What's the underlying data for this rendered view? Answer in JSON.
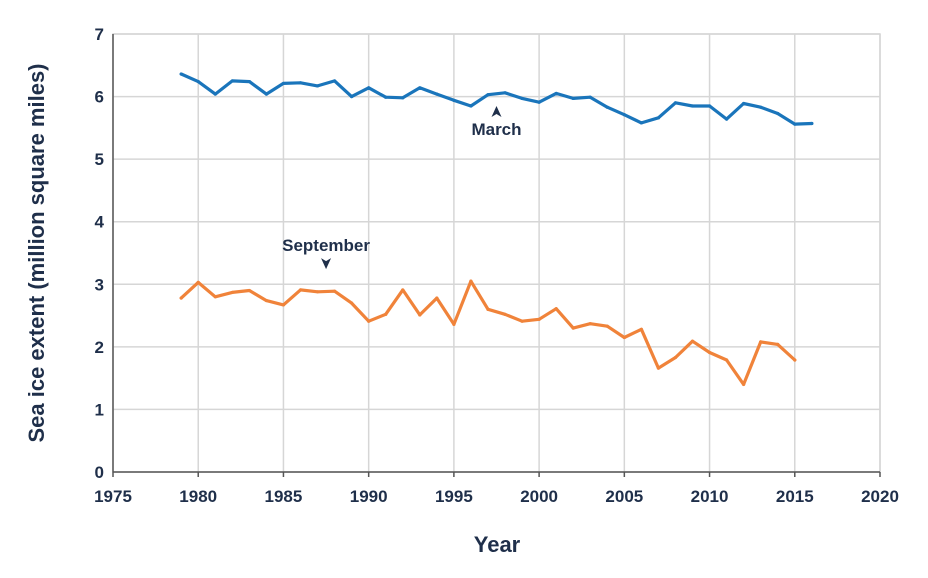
{
  "chart_data": {
    "type": "line",
    "title": "",
    "xlabel": "Year",
    "ylabel": "Sea ice extent (million square miles)",
    "xlim": [
      1975,
      2020
    ],
    "ylim": [
      0,
      7
    ],
    "x_ticks": [
      1975,
      1980,
      1985,
      1990,
      1995,
      2000,
      2005,
      2010,
      2015,
      2020
    ],
    "y_ticks": [
      0,
      1,
      2,
      3,
      4,
      5,
      6,
      7
    ],
    "grid": true,
    "series": [
      {
        "name": "March",
        "color": "#1a75bb",
        "x": [
          1979,
          1980,
          1981,
          1982,
          1983,
          1984,
          1985,
          1986,
          1987,
          1988,
          1989,
          1990,
          1991,
          1992,
          1993,
          1994,
          1995,
          1996,
          1997,
          1998,
          1999,
          2000,
          2001,
          2002,
          2003,
          2004,
          2005,
          2006,
          2007,
          2008,
          2009,
          2010,
          2011,
          2012,
          2013,
          2014,
          2015,
          2016
        ],
        "values": [
          6.36,
          6.24,
          6.04,
          6.25,
          6.24,
          6.04,
          6.21,
          6.22,
          6.17,
          6.25,
          6.0,
          6.14,
          5.99,
          5.98,
          6.14,
          6.04,
          5.94,
          5.85,
          6.03,
          6.06,
          5.97,
          5.91,
          6.05,
          5.97,
          5.99,
          5.83,
          5.71,
          5.58,
          5.66,
          5.9,
          5.85,
          5.85,
          5.64,
          5.89,
          5.83,
          5.73,
          5.56,
          5.57
        ]
      },
      {
        "name": "September",
        "color": "#f0833a",
        "x": [
          1979,
          1980,
          1981,
          1982,
          1983,
          1984,
          1985,
          1986,
          1987,
          1988,
          1989,
          1990,
          1991,
          1992,
          1993,
          1994,
          1995,
          1996,
          1997,
          1998,
          1999,
          2000,
          2001,
          2002,
          2003,
          2004,
          2005,
          2006,
          2007,
          2008,
          2009,
          2010,
          2011,
          2012,
          2013,
          2014,
          2015
        ],
        "values": [
          2.78,
          3.03,
          2.8,
          2.87,
          2.9,
          2.74,
          2.67,
          2.91,
          2.88,
          2.89,
          2.7,
          2.41,
          2.52,
          2.91,
          2.51,
          2.78,
          2.36,
          3.05,
          2.6,
          2.52,
          2.41,
          2.44,
          2.61,
          2.3,
          2.37,
          2.33,
          2.15,
          2.28,
          1.66,
          1.83,
          2.09,
          1.91,
          1.79,
          1.4,
          2.08,
          2.04,
          1.79
        ]
      }
    ],
    "annotations": [
      {
        "series": "March",
        "text": "March",
        "x": 1997.5,
        "y": 5.85,
        "placement": "below",
        "arrow": "up"
      },
      {
        "series": "September",
        "text": "September",
        "x": 1987.5,
        "y": 3.05,
        "placement": "above",
        "arrow": "down"
      }
    ]
  }
}
